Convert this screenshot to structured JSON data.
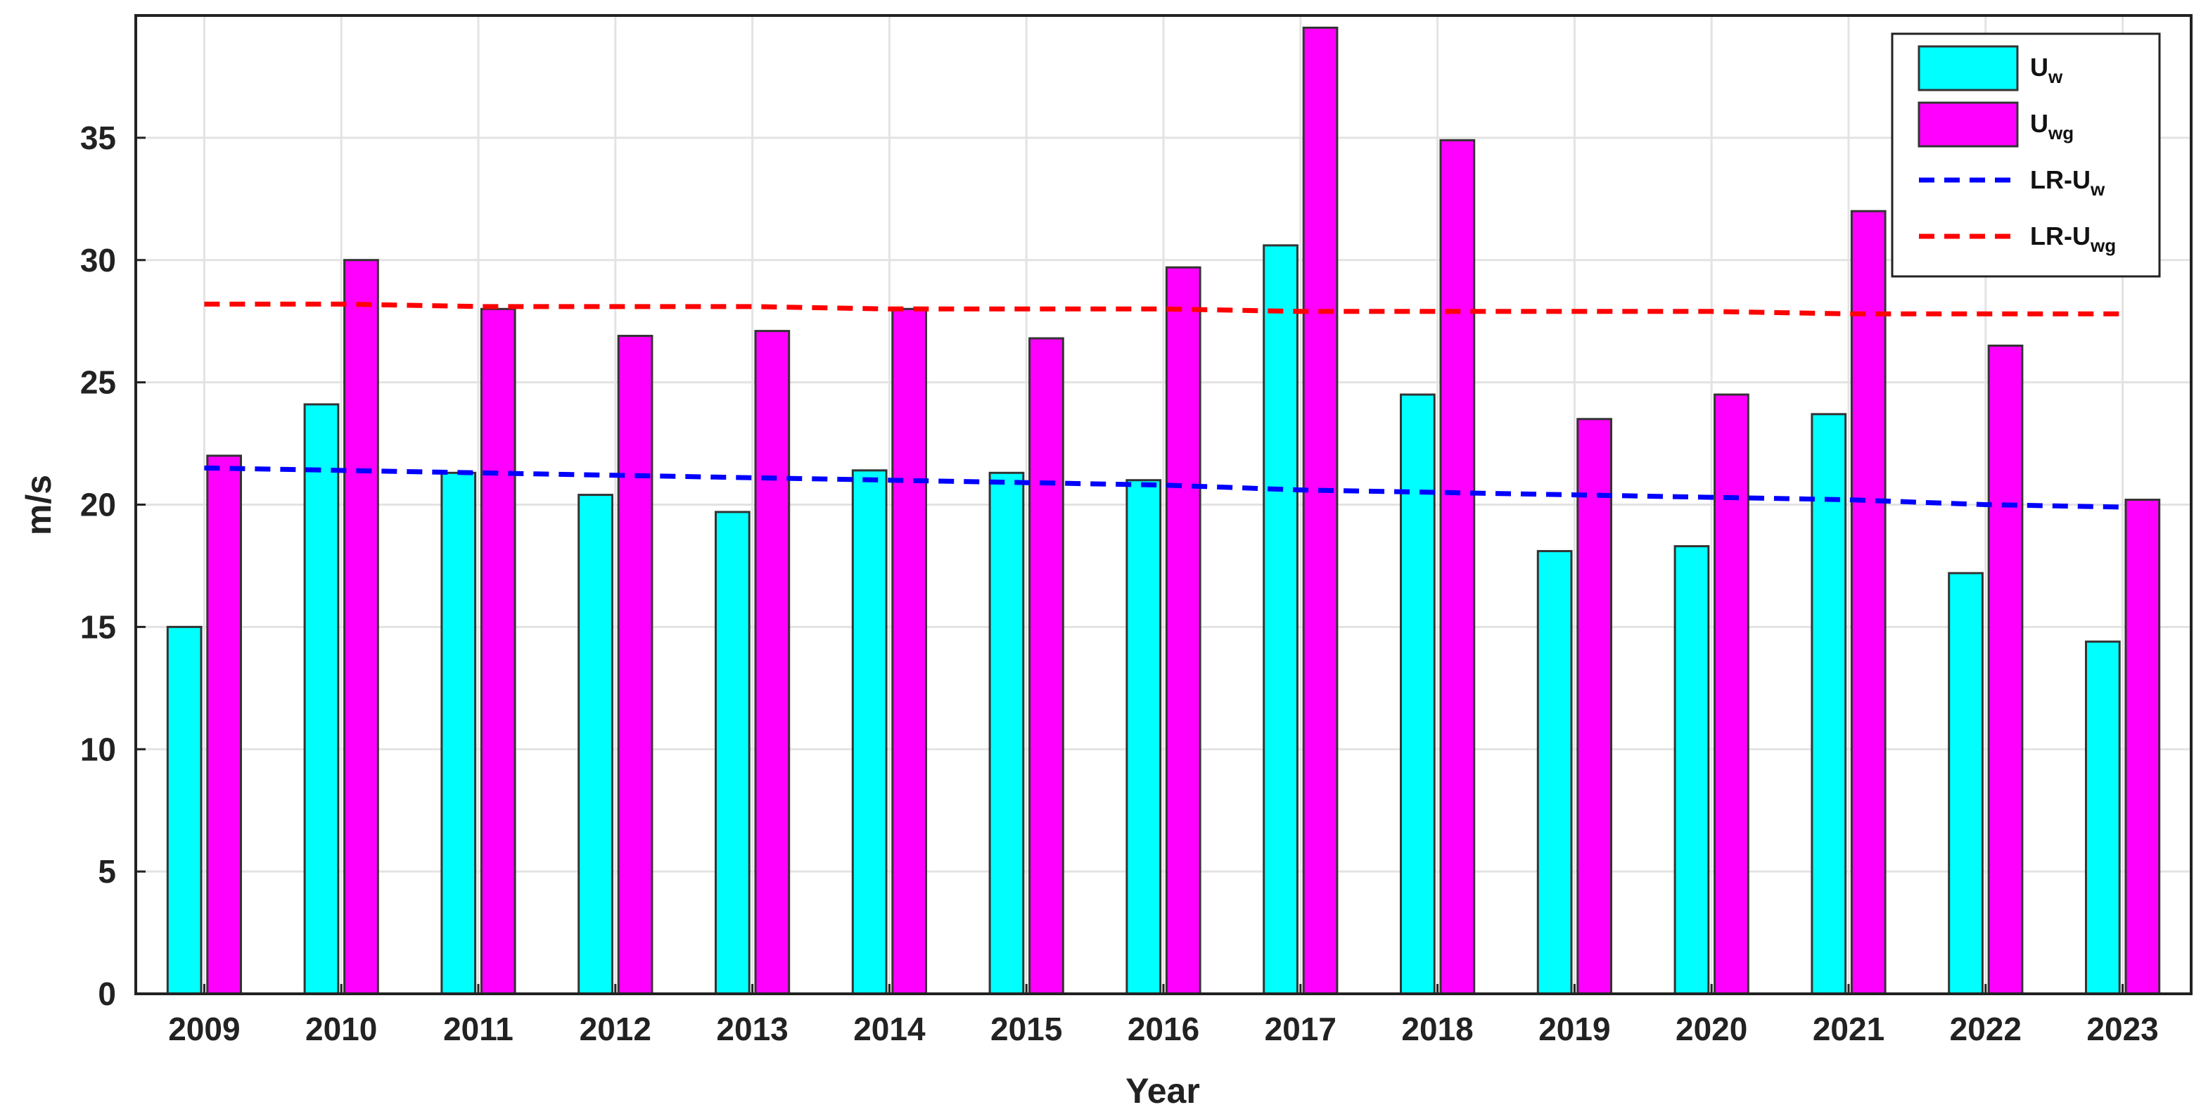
{
  "chart_data": {
    "type": "bar",
    "title": "",
    "xlabel": "Year",
    "ylabel": "m/s",
    "categories": [
      "2009",
      "2010",
      "2011",
      "2012",
      "2013",
      "2014",
      "2015",
      "2016",
      "2017",
      "2018",
      "2019",
      "2020",
      "2021",
      "2022",
      "2023"
    ],
    "yticks": [
      "0",
      "5",
      "10",
      "15",
      "20",
      "25",
      "30",
      "35"
    ],
    "ylim": [
      0,
      40
    ],
    "grid": true,
    "legend_position": "top-right",
    "series": [
      {
        "name": "Uw",
        "label_main": "U",
        "label_sub": "w",
        "kind": "bar",
        "color": "#00ffff",
        "values": [
          15.0,
          24.1,
          21.3,
          20.4,
          19.7,
          21.4,
          21.3,
          21.0,
          30.6,
          24.5,
          18.1,
          18.3,
          23.7,
          17.2,
          14.4
        ]
      },
      {
        "name": "Uwg",
        "label_main": "U",
        "label_sub": "wg",
        "kind": "bar",
        "color": "#ff00ff",
        "values": [
          22.0,
          30.0,
          28.0,
          26.9,
          27.1,
          28.0,
          26.8,
          29.7,
          39.5,
          34.9,
          23.5,
          24.5,
          32.0,
          26.5,
          20.2
        ]
      },
      {
        "name": "LR-Uw",
        "label_main": "LR-U",
        "label_sub": "w",
        "kind": "dashed-line",
        "color": "#0000ff",
        "values": [
          21.5,
          21.4,
          21.3,
          21.2,
          21.1,
          21.0,
          20.9,
          20.8,
          20.6,
          20.5,
          20.4,
          20.3,
          20.2,
          20.0,
          19.9
        ]
      },
      {
        "name": "LR-Uwg",
        "label_main": "LR-U",
        "label_sub": "wg",
        "kind": "dashed-line",
        "color": "#ff0000",
        "values": [
          28.2,
          28.2,
          28.1,
          28.1,
          28.1,
          28.0,
          28.0,
          28.0,
          27.9,
          27.9,
          27.9,
          27.9,
          27.8,
          27.8,
          27.8
        ]
      }
    ]
  }
}
